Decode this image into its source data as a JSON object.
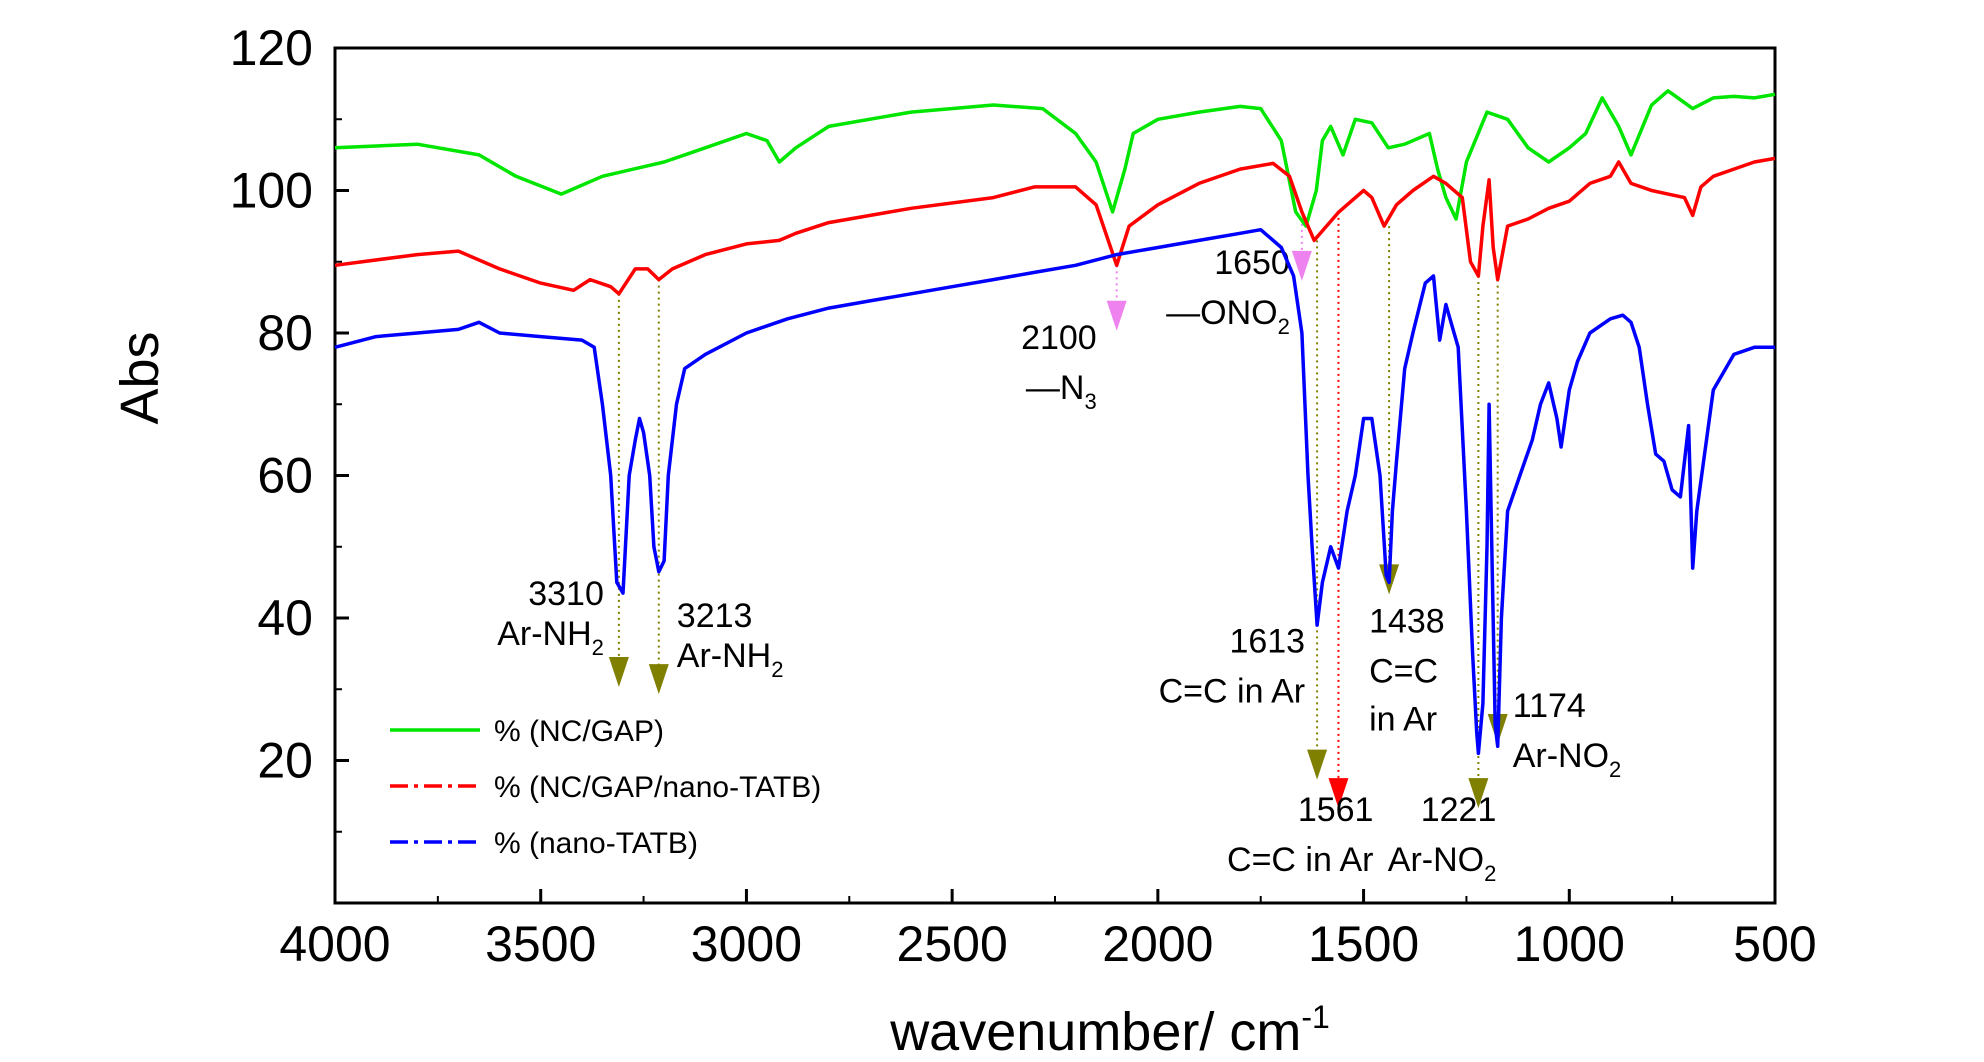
{
  "chart_data": {
    "type": "line",
    "title": "",
    "xlabel": "wavenumber/ cm",
    "xlabel_sup": "-1",
    "ylabel": "Abs",
    "xlim": [
      4000,
      500
    ],
    "ylim": [
      0,
      120
    ],
    "x_reversed": true,
    "x_ticks": [
      4000,
      3500,
      3000,
      2500,
      2000,
      1500,
      1000,
      500
    ],
    "y_ticks": [
      20,
      40,
      60,
      80,
      100,
      120
    ],
    "grid": false,
    "legend_position": "bottom-left",
    "series": [
      {
        "name": "% (NC/GAP)",
        "color": "#00e600",
        "line_style": "solid",
        "points": [
          [
            4000,
            106
          ],
          [
            3800,
            106.5
          ],
          [
            3650,
            105
          ],
          [
            3560,
            102
          ],
          [
            3450,
            99.5
          ],
          [
            3350,
            102
          ],
          [
            3200,
            104
          ],
          [
            3100,
            106
          ],
          [
            3000,
            108
          ],
          [
            2950,
            107
          ],
          [
            2920,
            104
          ],
          [
            2880,
            106
          ],
          [
            2800,
            109
          ],
          [
            2600,
            111
          ],
          [
            2400,
            112
          ],
          [
            2280,
            111.5
          ],
          [
            2200,
            108
          ],
          [
            2150,
            104
          ],
          [
            2110,
            97
          ],
          [
            2080,
            103
          ],
          [
            2060,
            108
          ],
          [
            2000,
            110
          ],
          [
            1900,
            111
          ],
          [
            1800,
            111.8
          ],
          [
            1750,
            111.5
          ],
          [
            1700,
            107
          ],
          [
            1665,
            97
          ],
          [
            1640,
            95
          ],
          [
            1615,
            100
          ],
          [
            1600,
            107
          ],
          [
            1580,
            109
          ],
          [
            1550,
            105
          ],
          [
            1520,
            110
          ],
          [
            1480,
            109.5
          ],
          [
            1440,
            106
          ],
          [
            1400,
            106.5
          ],
          [
            1340,
            108
          ],
          [
            1320,
            103
          ],
          [
            1300,
            99
          ],
          [
            1275,
            96
          ],
          [
            1250,
            104
          ],
          [
            1200,
            111
          ],
          [
            1150,
            110
          ],
          [
            1100,
            106
          ],
          [
            1050,
            104
          ],
          [
            1000,
            106
          ],
          [
            960,
            108
          ],
          [
            920,
            113
          ],
          [
            880,
            109
          ],
          [
            850,
            105
          ],
          [
            800,
            112
          ],
          [
            760,
            114
          ],
          [
            700,
            111.5
          ],
          [
            650,
            113
          ],
          [
            600,
            113.2
          ],
          [
            550,
            113
          ],
          [
            500,
            113.5
          ]
        ]
      },
      {
        "name": "% (NC/GAP/nano-TATB)",
        "color": "#ff0000",
        "line_style": "dash-dot",
        "points": [
          [
            4000,
            89.5
          ],
          [
            3800,
            91
          ],
          [
            3700,
            91.5
          ],
          [
            3600,
            89
          ],
          [
            3500,
            87
          ],
          [
            3420,
            86
          ],
          [
            3380,
            87.5
          ],
          [
            3330,
            86.5
          ],
          [
            3310,
            85.5
          ],
          [
            3270,
            89
          ],
          [
            3240,
            89
          ],
          [
            3213,
            87.5
          ],
          [
            3180,
            89
          ],
          [
            3100,
            91
          ],
          [
            3000,
            92.5
          ],
          [
            2920,
            93
          ],
          [
            2880,
            94
          ],
          [
            2800,
            95.5
          ],
          [
            2600,
            97.5
          ],
          [
            2400,
            99
          ],
          [
            2300,
            100.5
          ],
          [
            2200,
            100.5
          ],
          [
            2150,
            98
          ],
          [
            2100,
            89.5
          ],
          [
            2070,
            95
          ],
          [
            2000,
            98
          ],
          [
            1900,
            101
          ],
          [
            1800,
            103
          ],
          [
            1720,
            103.8
          ],
          [
            1680,
            102
          ],
          [
            1650,
            97
          ],
          [
            1620,
            93
          ],
          [
            1590,
            95
          ],
          [
            1560,
            97
          ],
          [
            1500,
            100
          ],
          [
            1480,
            99
          ],
          [
            1450,
            95
          ],
          [
            1420,
            98
          ],
          [
            1380,
            100
          ],
          [
            1330,
            102
          ],
          [
            1300,
            101
          ],
          [
            1260,
            99
          ],
          [
            1240,
            90
          ],
          [
            1221,
            88
          ],
          [
            1210,
            95
          ],
          [
            1195,
            101.5
          ],
          [
            1185,
            92
          ],
          [
            1174,
            87.5
          ],
          [
            1150,
            95
          ],
          [
            1100,
            96
          ],
          [
            1050,
            97.5
          ],
          [
            1000,
            98.5
          ],
          [
            950,
            101
          ],
          [
            900,
            102
          ],
          [
            880,
            104
          ],
          [
            850,
            101
          ],
          [
            800,
            100
          ],
          [
            760,
            99.5
          ],
          [
            720,
            99
          ],
          [
            700,
            96.5
          ],
          [
            680,
            100.5
          ],
          [
            650,
            102
          ],
          [
            600,
            103
          ],
          [
            550,
            104
          ],
          [
            500,
            104.5
          ]
        ]
      },
      {
        "name": "% (nano-TATB)",
        "color": "#0000ff",
        "line_style": "dash-dot",
        "points": [
          [
            4000,
            78
          ],
          [
            3900,
            79.5
          ],
          [
            3800,
            80
          ],
          [
            3700,
            80.5
          ],
          [
            3650,
            81.5
          ],
          [
            3600,
            80
          ],
          [
            3500,
            79.5
          ],
          [
            3400,
            79
          ],
          [
            3370,
            78
          ],
          [
            3350,
            70
          ],
          [
            3330,
            60
          ],
          [
            3315,
            45
          ],
          [
            3300,
            43.5
          ],
          [
            3285,
            60
          ],
          [
            3270,
            65
          ],
          [
            3260,
            68
          ],
          [
            3250,
            66
          ],
          [
            3235,
            60
          ],
          [
            3225,
            50
          ],
          [
            3213,
            46.5
          ],
          [
            3200,
            48
          ],
          [
            3190,
            60
          ],
          [
            3180,
            65
          ],
          [
            3170,
            70
          ],
          [
            3150,
            75
          ],
          [
            3100,
            77
          ],
          [
            3000,
            80
          ],
          [
            2900,
            82
          ],
          [
            2800,
            83.5
          ],
          [
            2700,
            84.5
          ],
          [
            2600,
            85.5
          ],
          [
            2500,
            86.5
          ],
          [
            2400,
            87.5
          ],
          [
            2300,
            88.5
          ],
          [
            2200,
            89.5
          ],
          [
            2100,
            91
          ],
          [
            2000,
            92
          ],
          [
            1900,
            93
          ],
          [
            1800,
            94
          ],
          [
            1750,
            94.5
          ],
          [
            1700,
            92
          ],
          [
            1670,
            88
          ],
          [
            1650,
            80
          ],
          [
            1635,
            60
          ],
          [
            1625,
            50
          ],
          [
            1613,
            39
          ],
          [
            1600,
            45
          ],
          [
            1580,
            50
          ],
          [
            1561,
            47
          ],
          [
            1540,
            55
          ],
          [
            1520,
            60
          ],
          [
            1500,
            68
          ],
          [
            1480,
            68
          ],
          [
            1460,
            60
          ],
          [
            1445,
            46
          ],
          [
            1438,
            45
          ],
          [
            1430,
            55
          ],
          [
            1420,
            62
          ],
          [
            1400,
            75
          ],
          [
            1380,
            80
          ],
          [
            1350,
            87
          ],
          [
            1330,
            88
          ],
          [
            1315,
            79
          ],
          [
            1300,
            84
          ],
          [
            1290,
            82
          ],
          [
            1270,
            78
          ],
          [
            1250,
            55
          ],
          [
            1235,
            35
          ],
          [
            1225,
            24
          ],
          [
            1221,
            21
          ],
          [
            1210,
            28
          ],
          [
            1200,
            50
          ],
          [
            1195,
            70
          ],
          [
            1190,
            55
          ],
          [
            1180,
            25
          ],
          [
            1174,
            22
          ],
          [
            1165,
            40
          ],
          [
            1150,
            55
          ],
          [
            1120,
            60
          ],
          [
            1090,
            65
          ],
          [
            1070,
            70
          ],
          [
            1050,
            73
          ],
          [
            1030,
            68
          ],
          [
            1020,
            64
          ],
          [
            1000,
            72
          ],
          [
            980,
            76
          ],
          [
            950,
            80
          ],
          [
            900,
            82
          ],
          [
            870,
            82.5
          ],
          [
            850,
            81.5
          ],
          [
            830,
            78
          ],
          [
            810,
            70
          ],
          [
            790,
            63
          ],
          [
            770,
            62
          ],
          [
            750,
            58
          ],
          [
            730,
            57
          ],
          [
            720,
            62
          ],
          [
            710,
            67
          ],
          [
            700,
            47
          ],
          [
            690,
            55
          ],
          [
            650,
            72
          ],
          [
            600,
            77
          ],
          [
            550,
            78
          ],
          [
            500,
            78
          ]
        ]
      }
    ],
    "annotations": [
      {
        "x": 3310,
        "label_line1": "3310",
        "label_line2_main": "Ar-NH",
        "label_line2_sub": "2",
        "arrow_color": "#808000",
        "line_from": 85.5,
        "arrow_y": 32
      },
      {
        "x": 3213,
        "label_line1": "3213",
        "label_line2_main": "Ar-NH",
        "label_line2_sub": "2",
        "arrow_color": "#808000",
        "line_from": 87.5,
        "arrow_y": 31
      },
      {
        "x": 2100,
        "label_line1": "2100",
        "label_line2_main": "N",
        "label_line2_sub": "3",
        "label_prefix": "—",
        "arrow_color": "#ee82ee",
        "line_from": 89.5,
        "arrow_y": 82
      },
      {
        "x": 1650,
        "label_line1": "1650",
        "label_line2_main": "ONO",
        "label_line2_sub": "2",
        "label_prefix": "—",
        "arrow_color": "#ee82ee",
        "line_from": 97,
        "arrow_y": 89
      },
      {
        "x": 1613,
        "label_line1": "1613",
        "label_line2_main": "C=C in Ar",
        "label_line2_sub": "",
        "arrow_color": "#808000",
        "line_from": 93,
        "arrow_y": 19
      },
      {
        "x": 1561,
        "label_line1": "1561",
        "label_line2_main": "C=C in Ar",
        "label_line2_sub": "",
        "arrow_color": "#ff0000",
        "line_from": 97,
        "arrow_y": 15
      },
      {
        "x": 1438,
        "label_line1": "1438",
        "label_line2_main": "C=C",
        "label_line2_sub": "",
        "label_line3": "in Ar",
        "arrow_color": "#808000",
        "line_from": 95,
        "arrow_y": 45
      },
      {
        "x": 1221,
        "label_line1": "1221",
        "label_line2_main": "Ar-NO",
        "label_line2_sub": "2",
        "arrow_color": "#808000",
        "line_from": 88,
        "arrow_y": 15
      },
      {
        "x": 1174,
        "label_line1": "1174",
        "label_line2_main": "Ar-NO",
        "label_line2_sub": "2",
        "arrow_color": "#808000",
        "line_from": 87.5,
        "arrow_y": 24
      }
    ]
  }
}
